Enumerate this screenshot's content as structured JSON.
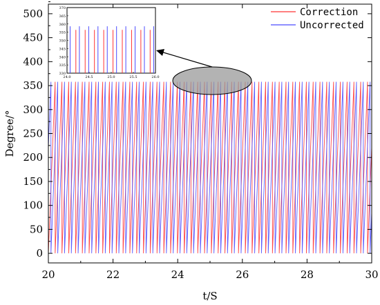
{
  "chart_data": {
    "type": "line",
    "title": "",
    "xlabel": "t/S",
    "ylabel": "Degree/°",
    "xlim": [
      20,
      30
    ],
    "ylim": [
      -20,
      520
    ],
    "x_ticks": [
      "20",
      "22",
      "24",
      "26",
      "28",
      "30"
    ],
    "y_ticks": [
      "0",
      "50",
      "100",
      "150",
      "200",
      "250",
      "300",
      "350",
      "400",
      "450",
      "500"
    ],
    "grid": false,
    "legend_position": "top-right",
    "series": [
      {
        "name": "Correction",
        "color": "#ff3333",
        "description_values": {
          "wave": "sawtooth",
          "min": 0,
          "max": 358,
          "period": 0.21,
          "phase": 0.0
        }
      },
      {
        "name": "Uncorrected",
        "color": "#4b4bff",
        "description_values": {
          "wave": "sawtooth",
          "min": 0,
          "max": 358,
          "period": 0.21,
          "phase": 0.08
        }
      }
    ],
    "inset": {
      "xlim": [
        24.0,
        26.0
      ],
      "ylim": [
        330,
        370
      ],
      "x_ticks": [
        "24.0",
        "24.5",
        "25.0",
        "25.5",
        "26.0"
      ],
      "y_ticks": [
        "330",
        "335",
        "340",
        "345",
        "350",
        "355",
        "360",
        "365",
        "370"
      ],
      "annotation": "zoom of peaks highlighted by ellipse near t=25, degree≈350"
    }
  }
}
